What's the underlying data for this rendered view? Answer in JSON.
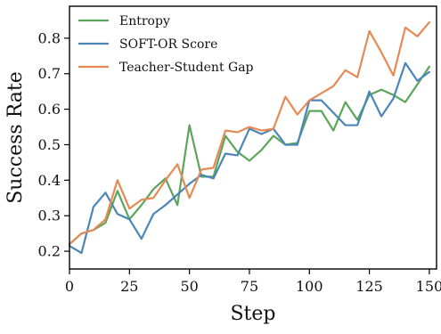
{
  "chart_data": {
    "type": "line",
    "title": "",
    "xlabel": "Step",
    "ylabel": "Success Rate",
    "xlim": [
      0,
      153
    ],
    "ylim": [
      0.15,
      0.89
    ],
    "xticks": [
      0,
      25,
      50,
      75,
      100,
      125,
      150
    ],
    "yticks": [
      0.2,
      0.3,
      0.4,
      0.5,
      0.6,
      0.7,
      0.8
    ],
    "grid": false,
    "legend_position": "top-left",
    "x": [
      0,
      5,
      10,
      15,
      20,
      25,
      30,
      35,
      40,
      45,
      50,
      55,
      60,
      65,
      70,
      75,
      80,
      85,
      90,
      95,
      100,
      105,
      110,
      115,
      120,
      125,
      130,
      135,
      140,
      145,
      150
    ],
    "series": [
      {
        "name": "Entropy",
        "color": "#5ba65b",
        "values": [
          0.22,
          0.25,
          0.26,
          0.28,
          0.37,
          0.29,
          0.33,
          0.375,
          0.405,
          0.33,
          0.555,
          0.41,
          0.41,
          0.525,
          0.48,
          0.455,
          0.485,
          0.525,
          0.5,
          0.505,
          0.595,
          0.595,
          0.54,
          0.62,
          0.57,
          0.64,
          0.655,
          0.64,
          0.62,
          0.67,
          0.72
        ]
      },
      {
        "name": "SOFT-OR Score",
        "color": "#4c86b8",
        "values": [
          0.215,
          0.195,
          0.325,
          0.365,
          0.305,
          0.29,
          0.235,
          0.305,
          0.33,
          0.36,
          0.39,
          0.415,
          0.405,
          0.475,
          0.47,
          0.545,
          0.53,
          0.545,
          0.5,
          0.5,
          0.625,
          0.625,
          0.59,
          0.555,
          0.555,
          0.65,
          0.58,
          0.63,
          0.73,
          0.68,
          0.705
        ]
      },
      {
        "name": "Teacher-Student Gap",
        "color": "#e68a55",
        "values": [
          0.22,
          0.25,
          0.26,
          0.29,
          0.4,
          0.32,
          0.345,
          0.35,
          0.4,
          0.445,
          0.35,
          0.43,
          0.435,
          0.54,
          0.535,
          0.55,
          0.54,
          0.545,
          0.635,
          0.585,
          0.625,
          0.645,
          0.665,
          0.71,
          0.69,
          0.82,
          0.76,
          0.695,
          0.83,
          0.805,
          0.845
        ]
      }
    ]
  }
}
